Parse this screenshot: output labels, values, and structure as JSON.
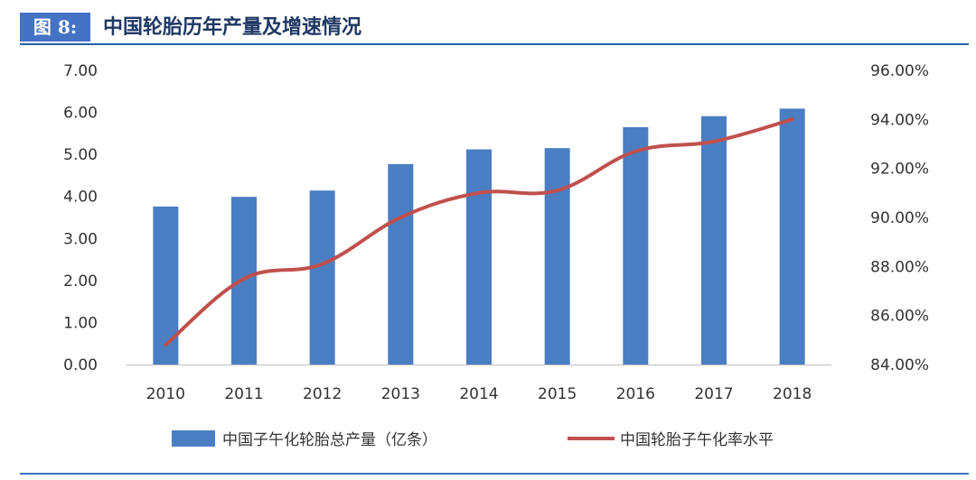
{
  "figure": {
    "label": "图 8:",
    "title": "中国轮胎历年产量及增速情况"
  },
  "colors": {
    "bar": "#4a7ec3",
    "line": "#c0504d",
    "header": "#4472c4",
    "title": "#1f3864"
  },
  "chart_data": {
    "type": "bar",
    "categories": [
      "2010",
      "2011",
      "2012",
      "2013",
      "2014",
      "2015",
      "2016",
      "2017",
      "2018"
    ],
    "series": [
      {
        "name": "中国子午化轮胎总产量（亿条）",
        "type": "bar",
        "axis": "left",
        "values": [
          3.76,
          3.99,
          4.14,
          4.77,
          5.12,
          5.15,
          5.65,
          5.91,
          6.09
        ]
      },
      {
        "name": "中国轮胎子午化率水平",
        "type": "line",
        "axis": "right",
        "values": [
          84.8,
          87.5,
          88.1,
          90.0,
          91.0,
          91.1,
          92.7,
          93.1,
          94.0
        ]
      }
    ],
    "y_left": {
      "ylim": [
        0,
        7
      ],
      "ticks": [
        "0.00",
        "1.00",
        "2.00",
        "3.00",
        "4.00",
        "5.00",
        "6.00",
        "7.00"
      ]
    },
    "y_right": {
      "ylim": [
        84,
        96
      ],
      "ticks": [
        "84.00%",
        "86.00%",
        "88.00%",
        "90.00%",
        "92.00%",
        "94.00%",
        "96.00%"
      ]
    },
    "grid": false,
    "legend_position": "bottom"
  }
}
